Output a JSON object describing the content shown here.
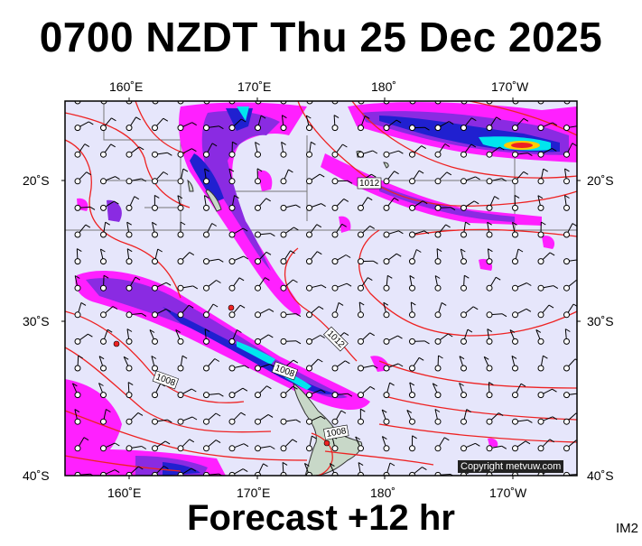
{
  "title": "0700 NZDT Thu 25 Dec 2025",
  "forecast": "Forecast +12 hr",
  "model": "IM2",
  "copyright": "Copyright metvuw.com",
  "axes": {
    "top_lon": [
      "160˚E",
      "170˚E",
      "180˚",
      "170˚W"
    ],
    "bottom_lon": [
      "160˚E",
      "170˚E",
      "180˚",
      "170˚W"
    ],
    "left_lat": [
      "20˚S",
      "30˚S",
      "40˚S"
    ],
    "right_lat": [
      "20˚S",
      "30˚S",
      "40˚S"
    ]
  },
  "isobar_labels": [
    "1012",
    "1012",
    "1008",
    "1008",
    "1008"
  ],
  "colors": {
    "ocean": "#e6e6fb",
    "isobar": "#ee2222",
    "rain_light": "#ff20ff",
    "rain_mid": "#8a2be2",
    "rain_heavy": "#2020d0",
    "rain_intense": "#00e5ee",
    "land": "#c8d8c8"
  }
}
